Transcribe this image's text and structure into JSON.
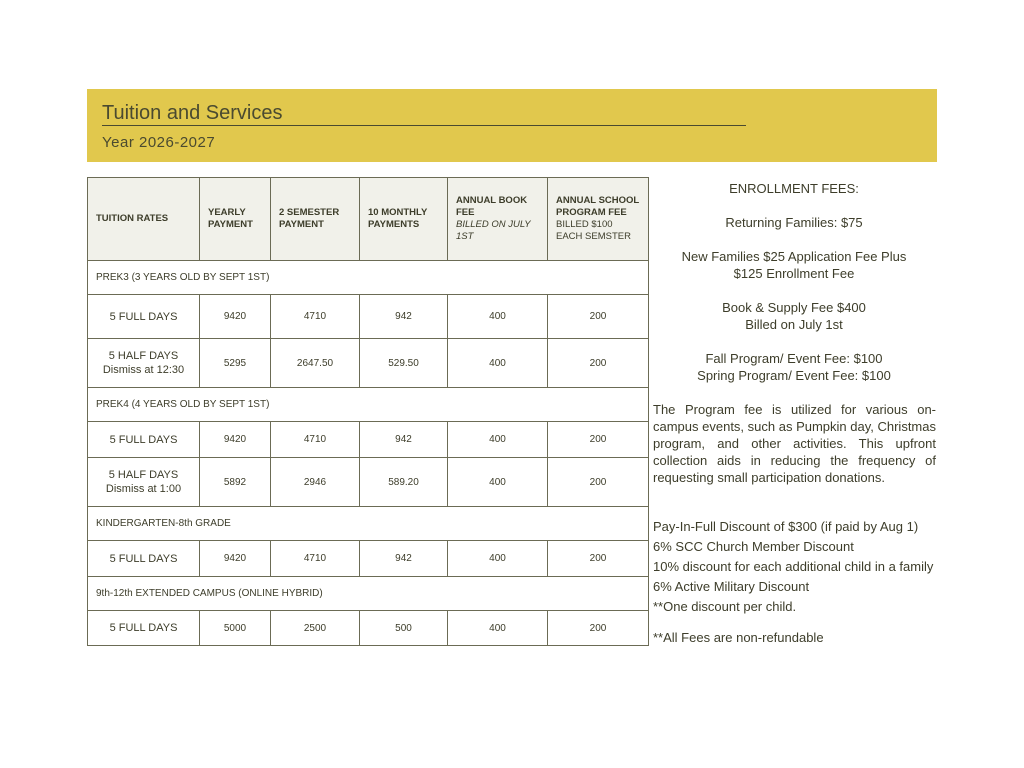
{
  "header": {
    "title": "Tuition and Services",
    "subtitle": "Year 2026-2027"
  },
  "table": {
    "header": [
      {
        "title": "TUITION RATES"
      },
      {
        "title": "YEARLY PAYMENT"
      },
      {
        "title": "2 SEMESTER PAYMENT"
      },
      {
        "title": "10 MONTHLY PAYMENTS"
      },
      {
        "title": "ANNUAL BOOK FEE",
        "note": "BILLED ON JULY 1ST"
      },
      {
        "title": "ANNUAL SCHOOL PROGRAM FEE",
        "note": "BILLED $100 EACH SEMSTER"
      }
    ],
    "sections": [
      {
        "label": "PREK3 (3 YEARS OLD BY SEPT 1ST)",
        "rows": [
          {
            "label": "5 FULL DAYS",
            "values": [
              "9420",
              "4710",
              "942",
              "400",
              "200"
            ]
          },
          {
            "label": "5 HALF DAYS",
            "note": "Dismiss at 12:30",
            "values": [
              "5295",
              "2647.50",
              "529.50",
              "400",
              "200"
            ]
          }
        ]
      },
      {
        "label": "PREK4 (4 YEARS OLD BY SEPT 1ST)",
        "rows": [
          {
            "label": "5 FULL DAYS",
            "values": [
              "9420",
              "4710",
              "942",
              "400",
              "200"
            ]
          },
          {
            "label": "5 HALF DAYS",
            "note": "Dismiss at 1:00",
            "values": [
              "5892",
              "2946",
              "589.20",
              "400",
              "200"
            ]
          }
        ]
      },
      {
        "label": "KINDERGARTEN-8th GRADE",
        "rows": [
          {
            "label": "5 FULL DAYS",
            "values": [
              "9420",
              "4710",
              "942",
              "400",
              "200"
            ]
          }
        ]
      },
      {
        "label": "9th-12th EXTENDED CAMPUS (ONLINE HYBRID)",
        "rows": [
          {
            "label": "5 FULL DAYS",
            "values": [
              "5000",
              "2500",
              "500",
              "400",
              "200"
            ]
          }
        ]
      }
    ]
  },
  "enrollment": {
    "title": "ENROLLMENT FEES:",
    "groups": [
      [
        "Returning Families: $75"
      ],
      [
        "New Families $25 Application Fee Plus",
        "$125 Enrollment Fee"
      ],
      [
        "Book & Supply Fee $400",
        "Billed on July 1st"
      ],
      [
        "Fall Program/ Event Fee: $100",
        "Spring Program/ Event Fee: $100"
      ]
    ],
    "paragraph": "The Program fee is utilized for various on-campus events, such as Pumpkin day, Christmas program, and other activities. This upfront collection aids in reducing the frequency of requesting small participation donations.",
    "discounts": [
      "Pay-In-Full Discount of $300 (if paid by Aug 1)",
      "6% SCC Church Member Discount",
      "10% discount for each additional child in a family",
      "6% Active Military Discount",
      "**One discount per child."
    ],
    "footnote": "**All Fees are non-refundable"
  }
}
